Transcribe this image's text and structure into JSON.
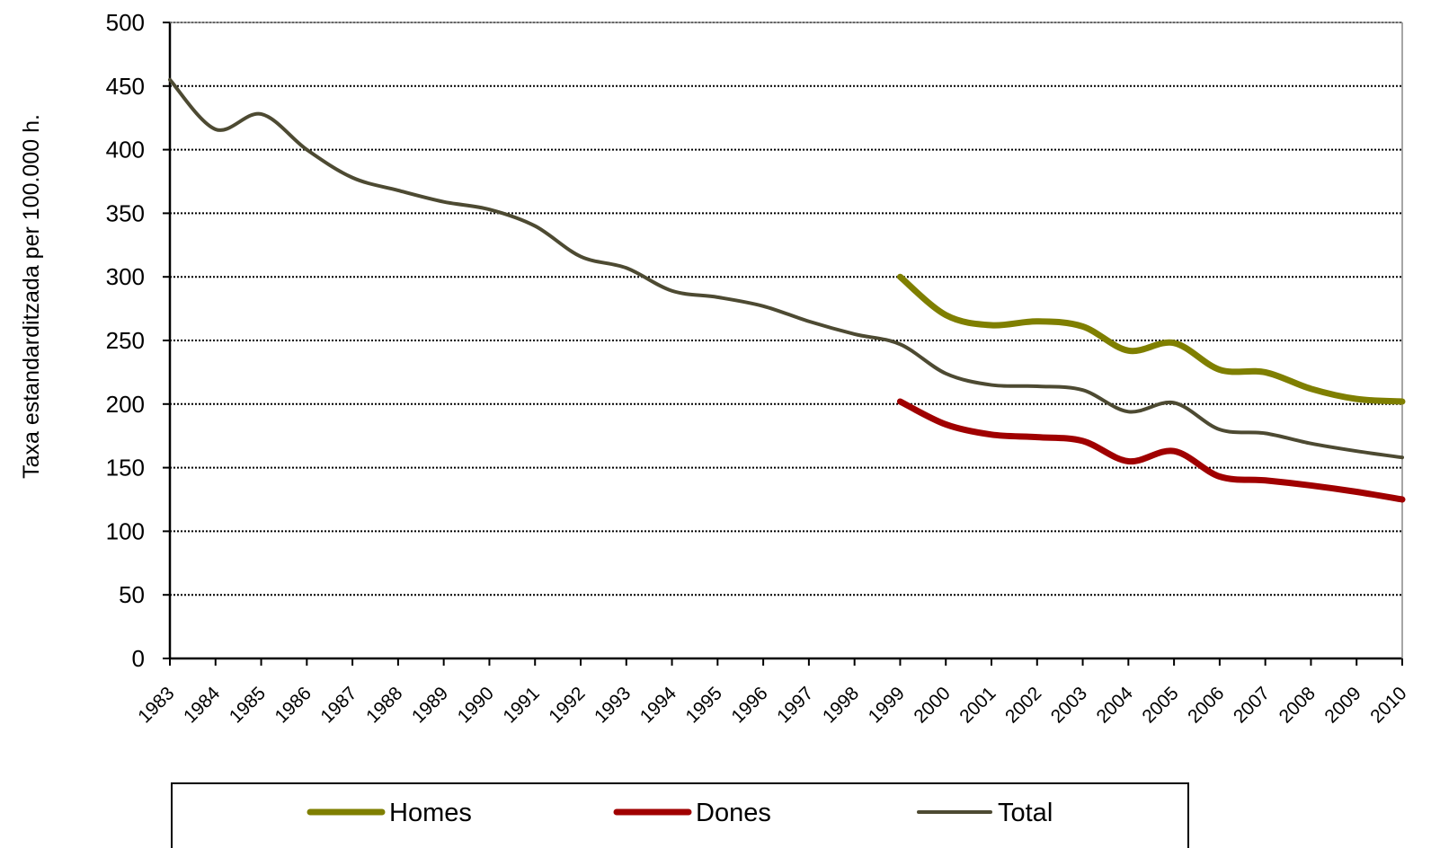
{
  "chart_data": {
    "type": "line",
    "title": "",
    "xlabel": "",
    "ylabel": "Taxa estandarditzada per 100.000 h.",
    "ylim": [
      0,
      500
    ],
    "yticks": [
      0,
      50,
      100,
      150,
      200,
      250,
      300,
      350,
      400,
      450,
      500
    ],
    "grid": "horizontal-dotted",
    "legend_position": "bottom",
    "categories": [
      "1983",
      "1984",
      "1985",
      "1986",
      "1987",
      "1988",
      "1989",
      "1990",
      "1991",
      "1992",
      "1993",
      "1994",
      "1995",
      "1996",
      "1997",
      "1998",
      "1999",
      "2000",
      "2001",
      "2002",
      "2003",
      "2004",
      "2005",
      "2006",
      "2007",
      "2008",
      "2009",
      "2010"
    ],
    "series": [
      {
        "name": "Homes",
        "color": "#7f7f00",
        "width": 7,
        "values": [
          null,
          null,
          null,
          null,
          null,
          null,
          null,
          null,
          null,
          null,
          null,
          null,
          null,
          null,
          null,
          null,
          300,
          270,
          262,
          265,
          261,
          242,
          248,
          227,
          225,
          212,
          204,
          202
        ]
      },
      {
        "name": "Dones",
        "color": "#a00000",
        "width": 7,
        "values": [
          null,
          null,
          null,
          null,
          null,
          null,
          null,
          null,
          null,
          null,
          null,
          null,
          null,
          null,
          null,
          null,
          202,
          184,
          176,
          174,
          171,
          155,
          163,
          143,
          140,
          136,
          131,
          125
        ]
      },
      {
        "name": "Total",
        "color": "#4d4a32",
        "width": 4,
        "values": [
          455,
          416,
          428,
          400,
          378,
          368,
          359,
          353,
          340,
          316,
          307,
          289,
          284,
          277,
          265,
          255,
          247,
          224,
          215,
          214,
          211,
          194,
          201,
          180,
          177,
          169,
          163,
          158
        ]
      }
    ]
  }
}
